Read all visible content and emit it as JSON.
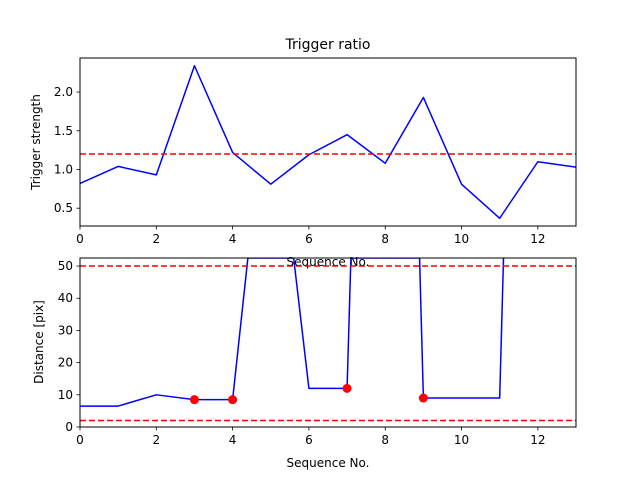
{
  "chart_data": [
    {
      "type": "line",
      "title": "Trigger ratio",
      "xlabel": "Sequence No.",
      "ylabel": "Trigger strength",
      "xlim": [
        0,
        13
      ],
      "ylim": [
        0.27,
        2.44
      ],
      "xticks": [
        0,
        2,
        4,
        6,
        8,
        10,
        12
      ],
      "yticks": [
        0.5,
        1.0,
        1.5,
        2.0
      ],
      "grid": false,
      "series": [
        {
          "color": "#0000ff",
          "x": [
            0,
            1,
            2,
            3,
            4,
            5,
            6,
            7,
            8,
            9,
            10,
            11,
            12,
            13
          ],
          "y": [
            0.82,
            1.04,
            0.93,
            2.34,
            1.22,
            0.81,
            1.19,
            1.45,
            1.08,
            1.93,
            0.81,
            0.37,
            1.1,
            1.03
          ]
        }
      ],
      "hlines": [
        {
          "y": 1.2,
          "color": "#ff0000",
          "style": "dashed"
        }
      ]
    },
    {
      "type": "line",
      "title": "",
      "xlabel": "Sequence No.",
      "ylabel": "Distance [pix]",
      "xlim": [
        0,
        13
      ],
      "ylim": [
        0,
        52.5
      ],
      "xticks": [
        0,
        2,
        4,
        6,
        8,
        10,
        12
      ],
      "yticks": [
        0,
        10,
        20,
        30,
        40,
        50
      ],
      "grid": false,
      "series": [
        {
          "color": "#0000ff",
          "x": [
            0,
            1,
            2,
            3,
            4,
            4.4,
            5.6,
            6,
            7,
            7.1,
            8.9,
            9,
            10,
            11,
            11.1
          ],
          "y": [
            6.5,
            6.5,
            10,
            8.5,
            8.5,
            52.5,
            52.5,
            12,
            12,
            52.5,
            52.5,
            9,
            9,
            9,
            52.5
          ]
        }
      ],
      "markers": {
        "color": "#ff0000",
        "x": [
          3,
          4,
          7,
          9
        ],
        "y": [
          8.5,
          8.5,
          12,
          9
        ]
      },
      "hlines": [
        {
          "y": 50,
          "color": "#ff0000",
          "style": "dashed"
        },
        {
          "y": 2,
          "color": "#ff0000",
          "style": "dashed"
        }
      ]
    }
  ]
}
